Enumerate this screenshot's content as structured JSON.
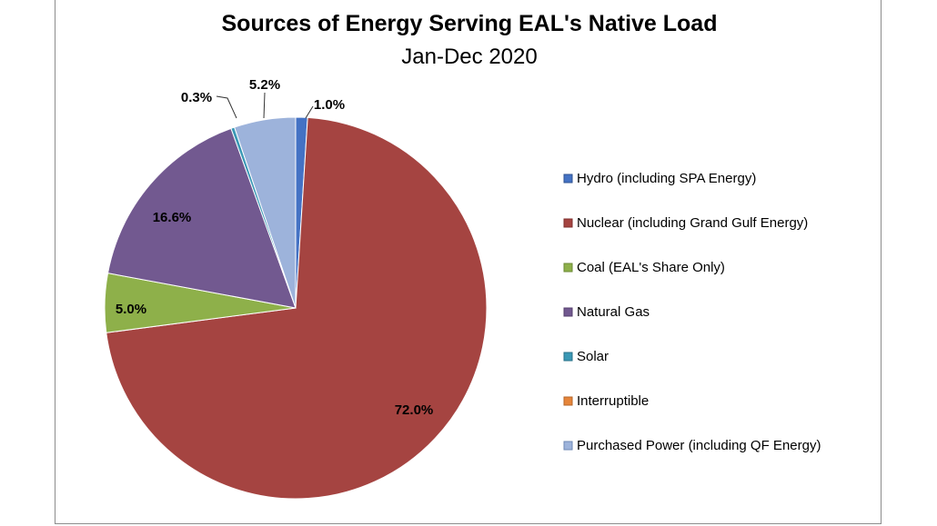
{
  "chart_data": {
    "type": "pie",
    "title": "Sources of Energy Serving EAL's Native Load",
    "subtitle": "Jan-Dec 2020",
    "legend_position": "right",
    "series": [
      {
        "name": "Hydro (including SPA Energy)",
        "value": 1.0,
        "label": "1.0%",
        "color": "#4472c4",
        "border": "#2f528f"
      },
      {
        "name": "Nuclear (including Grand Gulf Energy)",
        "value": 72.0,
        "label": "72.0%",
        "color": "#a54441",
        "border": "#7f2f2d"
      },
      {
        "name": "Coal (EAL's Share Only)",
        "value": 5.0,
        "label": "5.0%",
        "color": "#8eb04a",
        "border": "#6b8a35"
      },
      {
        "name": "Natural Gas",
        "value": 16.6,
        "label": "16.6%",
        "color": "#725990",
        "border": "#543f6d"
      },
      {
        "name": "Solar",
        "value": 0.3,
        "label": "0.3%",
        "color": "#3a98b5",
        "border": "#2a7088"
      },
      {
        "name": "Interruptible",
        "value": 0.0,
        "label": "",
        "color": "#e6853a",
        "border": "#b5662a"
      },
      {
        "name": "Purchased Power (including QF Energy)",
        "value": 5.2,
        "label": "5.2%",
        "color": "#9db3db",
        "border": "#6f88b5"
      }
    ]
  }
}
